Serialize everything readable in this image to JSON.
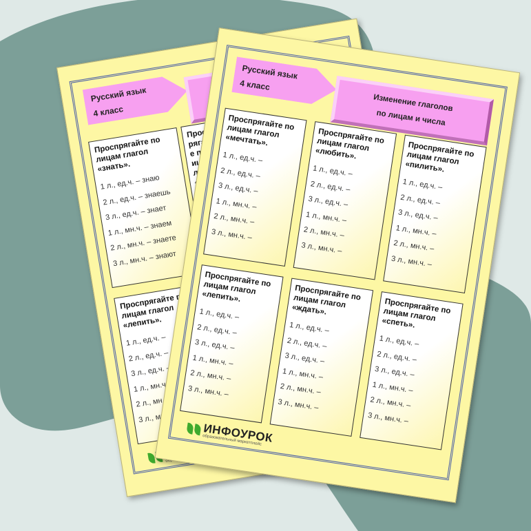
{
  "subject": "Русский язык",
  "grade": "4 класс",
  "title_line1": "Изменение глаголов",
  "title_line2": "по лицам и числа",
  "logo": {
    "name": "ИНФОУРОК",
    "tagline": "образовательный маркетплейс"
  },
  "colors": {
    "page": "#fdf7a4",
    "pink": "#f7a0f0",
    "background": "#7c9f98",
    "logo_green": "#3faa2e"
  },
  "back_cards": [
    {
      "heading": "Проспрягайте по лицам глагол «знать».",
      "lines": [
        "1 л., ед.ч. – знаю",
        "2 л., ед.ч. – знаешь",
        "3 л., ед.ч. – знает",
        "1 л., мн.ч. – знаем",
        "2 л., мн.ч. – знаете",
        "3 л., мн.ч. – знают"
      ]
    },
    {
      "heading": "Проспрягайте по лицам глагол «л",
      "lines": [
        "1"
      ]
    },
    {
      "heading": "Проспрягайте по лицам глагол «лепить».",
      "lines": [
        "1 л., ед.ч. –",
        "2 л., ед.ч. –",
        "3 л., ед.ч. –",
        "1 л., мн.ч. –",
        "2 л., мн.ч. –",
        "3 л., мн.ч. –"
      ]
    }
  ],
  "front_cards": [
    {
      "heading": "Проспрягайте по лицам глагол «мечтать».",
      "lines": [
        "1 л., ед.ч. –",
        "2 л., ед.ч. –",
        "3 л., ед.ч. –",
        "1 л., мн.ч. –",
        "2 л., мн.ч. –",
        "3 л., мн.ч. –"
      ]
    },
    {
      "heading": "Проспрягайте по лицам глагол «любить».",
      "lines": [
        "1 л., ед.ч. –",
        "2 л., ед.ч. –",
        "3 л., ед.ч. –",
        "1 л., мн.ч. –",
        "2 л., мн.ч. –",
        "3 л., мн.ч. –"
      ]
    },
    {
      "heading": "Проспрягайте по лицам глагол «пилить».",
      "lines": [
        "1 л., ед.ч. –",
        "2 л., ед.ч. –",
        "3 л., ед.ч. –",
        "1 л., мн.ч. –",
        "2 л., мн.ч. –",
        "3 л., мн.ч. –"
      ]
    },
    {
      "heading": "Проспрягайте по лицам глагол «лепить».",
      "lines": [
        "1 л., ед.ч. –",
        "2 л., ед.ч. –",
        "3 л., ед.ч. –",
        "1 л., мн.ч. –",
        "2 л., мн.ч. –",
        "3 л., мн.ч. –"
      ]
    },
    {
      "heading": "Проспрягайте по лицам глагол «ждать».",
      "lines": [
        "1 л., ед.ч. –",
        "2 л., ед.ч. –",
        "3 л., ед.ч. –",
        "1 л., мн.ч. –",
        "2 л., мн.ч. –",
        "3 л., мн.ч. –"
      ]
    },
    {
      "heading": "Проспрягайте по лицам глагол «спеть».",
      "lines": [
        "1 л., ед.ч. –",
        "2 л., ед.ч. –",
        "3 л., ед.ч. –",
        "1 л., мн.ч. –",
        "2 л., мн.ч. –",
        "3 л., мн.ч. –"
      ]
    }
  ]
}
